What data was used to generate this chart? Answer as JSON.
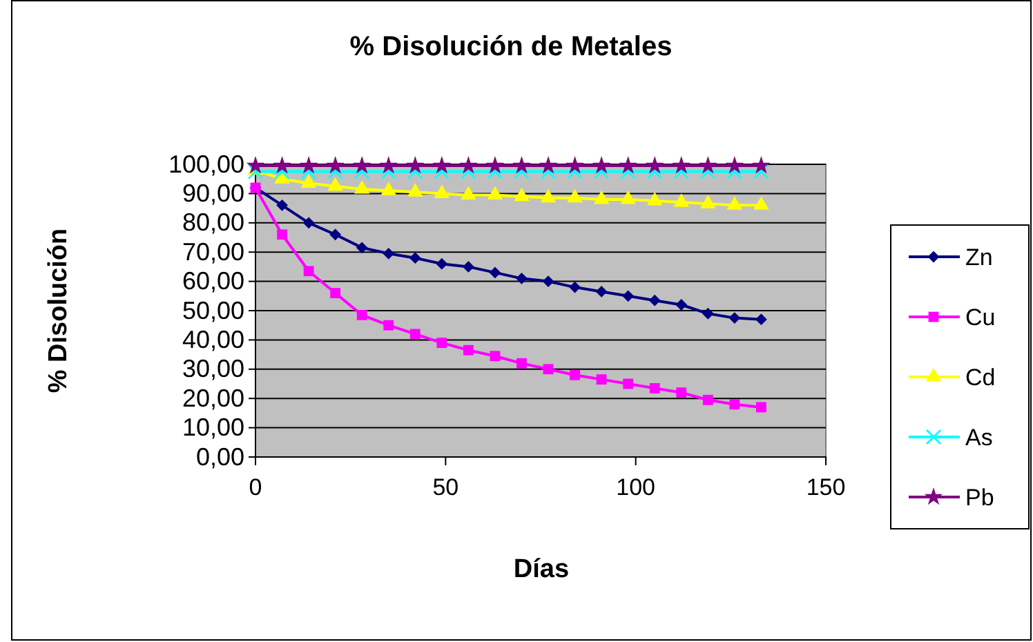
{
  "chart_data": {
    "type": "line",
    "title": "%  Disolución de Metales",
    "xlabel": "Días",
    "ylabel": "% Disolución",
    "x": [
      0,
      7,
      14,
      21,
      28,
      35,
      42,
      49,
      56,
      63,
      70,
      77,
      84,
      91,
      98,
      105,
      112,
      119,
      126,
      133
    ],
    "xlim": [
      0,
      150
    ],
    "xticks": [
      0,
      50,
      100,
      150
    ],
    "ylim": [
      0,
      100
    ],
    "yticks": [
      {
        "value": 0,
        "label": "0,00"
      },
      {
        "value": 10,
        "label": "10,00"
      },
      {
        "value": 20,
        "label": "20,00"
      },
      {
        "value": 30,
        "label": "30,00"
      },
      {
        "value": 40,
        "label": "40,00"
      },
      {
        "value": 50,
        "label": "50,00"
      },
      {
        "value": 60,
        "label": "60,00"
      },
      {
        "value": 70,
        "label": "70,00"
      },
      {
        "value": 80,
        "label": "80,00"
      },
      {
        "value": 90,
        "label": "90,00"
      },
      {
        "value": 100,
        "label": "100,00"
      }
    ],
    "grid": "y",
    "legend": "right",
    "series": [
      {
        "name": "Zn",
        "color": "#000080",
        "marker": "diamond",
        "values": [
          92,
          86,
          80,
          76,
          71.5,
          69.5,
          68,
          66,
          65,
          63,
          61,
          60,
          58,
          56.5,
          55,
          53.5,
          52,
          49,
          47.5,
          47
        ]
      },
      {
        "name": "Cu",
        "color": "#ff00ff",
        "marker": "square",
        "values": [
          92,
          76,
          63.5,
          56,
          48.5,
          45,
          42,
          39,
          36.5,
          34.5,
          32,
          30,
          28,
          26.5,
          25,
          23.5,
          22,
          19.5,
          18,
          17
        ]
      },
      {
        "name": "Cd",
        "color": "#ffff00",
        "marker": "triangle",
        "values": [
          98,
          95,
          93.5,
          92.5,
          91.5,
          91,
          90.5,
          90,
          89.5,
          89.5,
          89,
          88.5,
          88.5,
          88,
          88,
          87.5,
          87,
          86.5,
          86,
          86
        ]
      },
      {
        "name": "As",
        "color": "#00ffff",
        "marker": "cross",
        "values": [
          97.5,
          97.5,
          97.5,
          97.5,
          97.5,
          97.5,
          97.5,
          97.5,
          97.5,
          97.5,
          97.5,
          97.5,
          97.5,
          97.5,
          97.5,
          97.5,
          97.5,
          97.5,
          97.5,
          97.5
        ]
      },
      {
        "name": "Pb",
        "color": "#800080",
        "marker": "star",
        "values": [
          99.5,
          99.5,
          99.5,
          99.5,
          99.5,
          99.5,
          99.5,
          99.5,
          99.5,
          99.5,
          99.5,
          99.5,
          99.5,
          99.5,
          99.5,
          99.5,
          99.5,
          99.5,
          99.5,
          99.5
        ]
      }
    ]
  }
}
